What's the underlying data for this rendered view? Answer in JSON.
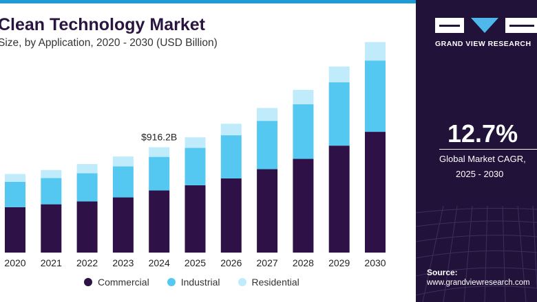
{
  "header": {
    "title": "Clean Technology Market",
    "subtitle": "Size, by Application, 2020 - 2030 (USD Billion)"
  },
  "brand": {
    "name": "GRAND VIEW RESEARCH"
  },
  "stat": {
    "value": "12.7%",
    "label": "Global Market CAGR,",
    "period": "2025 - 2030"
  },
  "source": {
    "label": "Source:",
    "url": "www.grandviewresearch.com"
  },
  "colors": {
    "commercial": "#2e1147",
    "industrial": "#55c8f2",
    "residential": "#c0ebfb",
    "panel": "#21123a",
    "accent": "#1e9bd7"
  },
  "chart_data": {
    "type": "bar",
    "stacked": true,
    "title": "Clean Technology Market",
    "subtitle": "Size, by Application, 2020 - 2030 (USD Billion)",
    "categories": [
      "2020",
      "2021",
      "2022",
      "2023",
      "2024",
      "2025",
      "2026",
      "2027",
      "2028",
      "2029",
      "2030"
    ],
    "series": [
      {
        "name": "Commercial",
        "color": "#2e1147",
        "values": [
          395,
          420,
          445,
          480,
          540,
          585,
          645,
          725,
          815,
          930,
          1050
        ]
      },
      {
        "name": "Industrial",
        "color": "#55c8f2",
        "values": [
          220,
          228,
          245,
          270,
          292,
          325,
          375,
          420,
          475,
          550,
          620
        ]
      },
      {
        "name": "Residential",
        "color": "#c0ebfb",
        "values": [
          68,
          70,
          80,
          85,
          84,
          92,
          100,
          112,
          125,
          138,
          160
        ]
      }
    ],
    "annotations": [
      {
        "category": "2024",
        "text": "$916.2B"
      }
    ],
    "legend_position": "bottom",
    "ylim": [
      0,
      1850
    ],
    "grid": false
  }
}
